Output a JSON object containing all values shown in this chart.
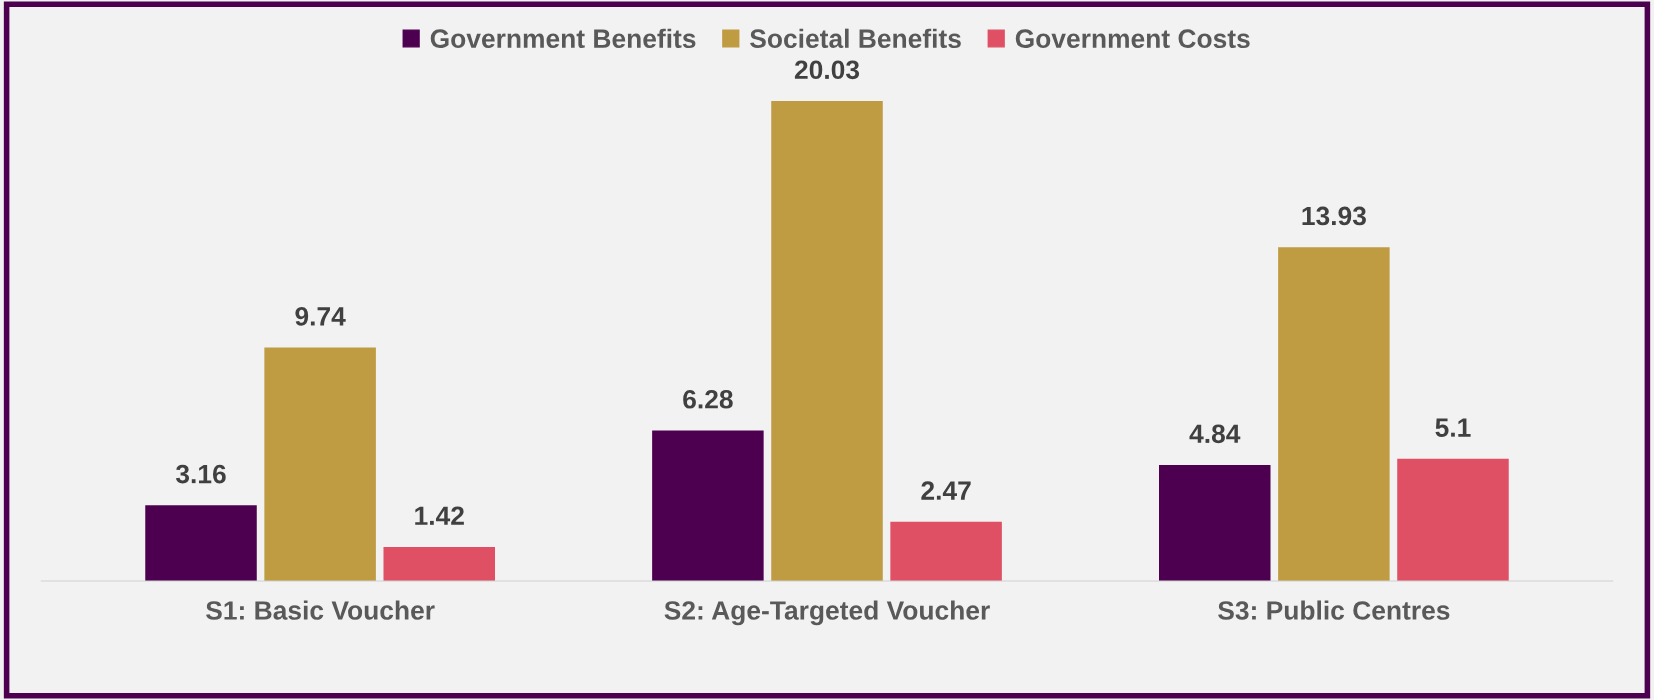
{
  "chart_data": {
    "type": "bar",
    "categories": [
      "S1: Basic Voucher",
      "S2: Age-Targeted Voucher",
      "S3: Public Centres"
    ],
    "series": [
      {
        "name": "Government Benefits",
        "color": "#4d0050",
        "values": [
          3.16,
          6.28,
          4.84
        ]
      },
      {
        "name": "Societal Benefits",
        "color": "#bf9b42",
        "values": [
          9.74,
          20.03,
          13.93
        ]
      },
      {
        "name": "Government Costs",
        "color": "#e05065",
        "values": [
          1.42,
          2.47,
          5.1
        ]
      }
    ],
    "data_labels": true,
    "legend": "top",
    "grid": false,
    "tick_labels": "x"
  }
}
